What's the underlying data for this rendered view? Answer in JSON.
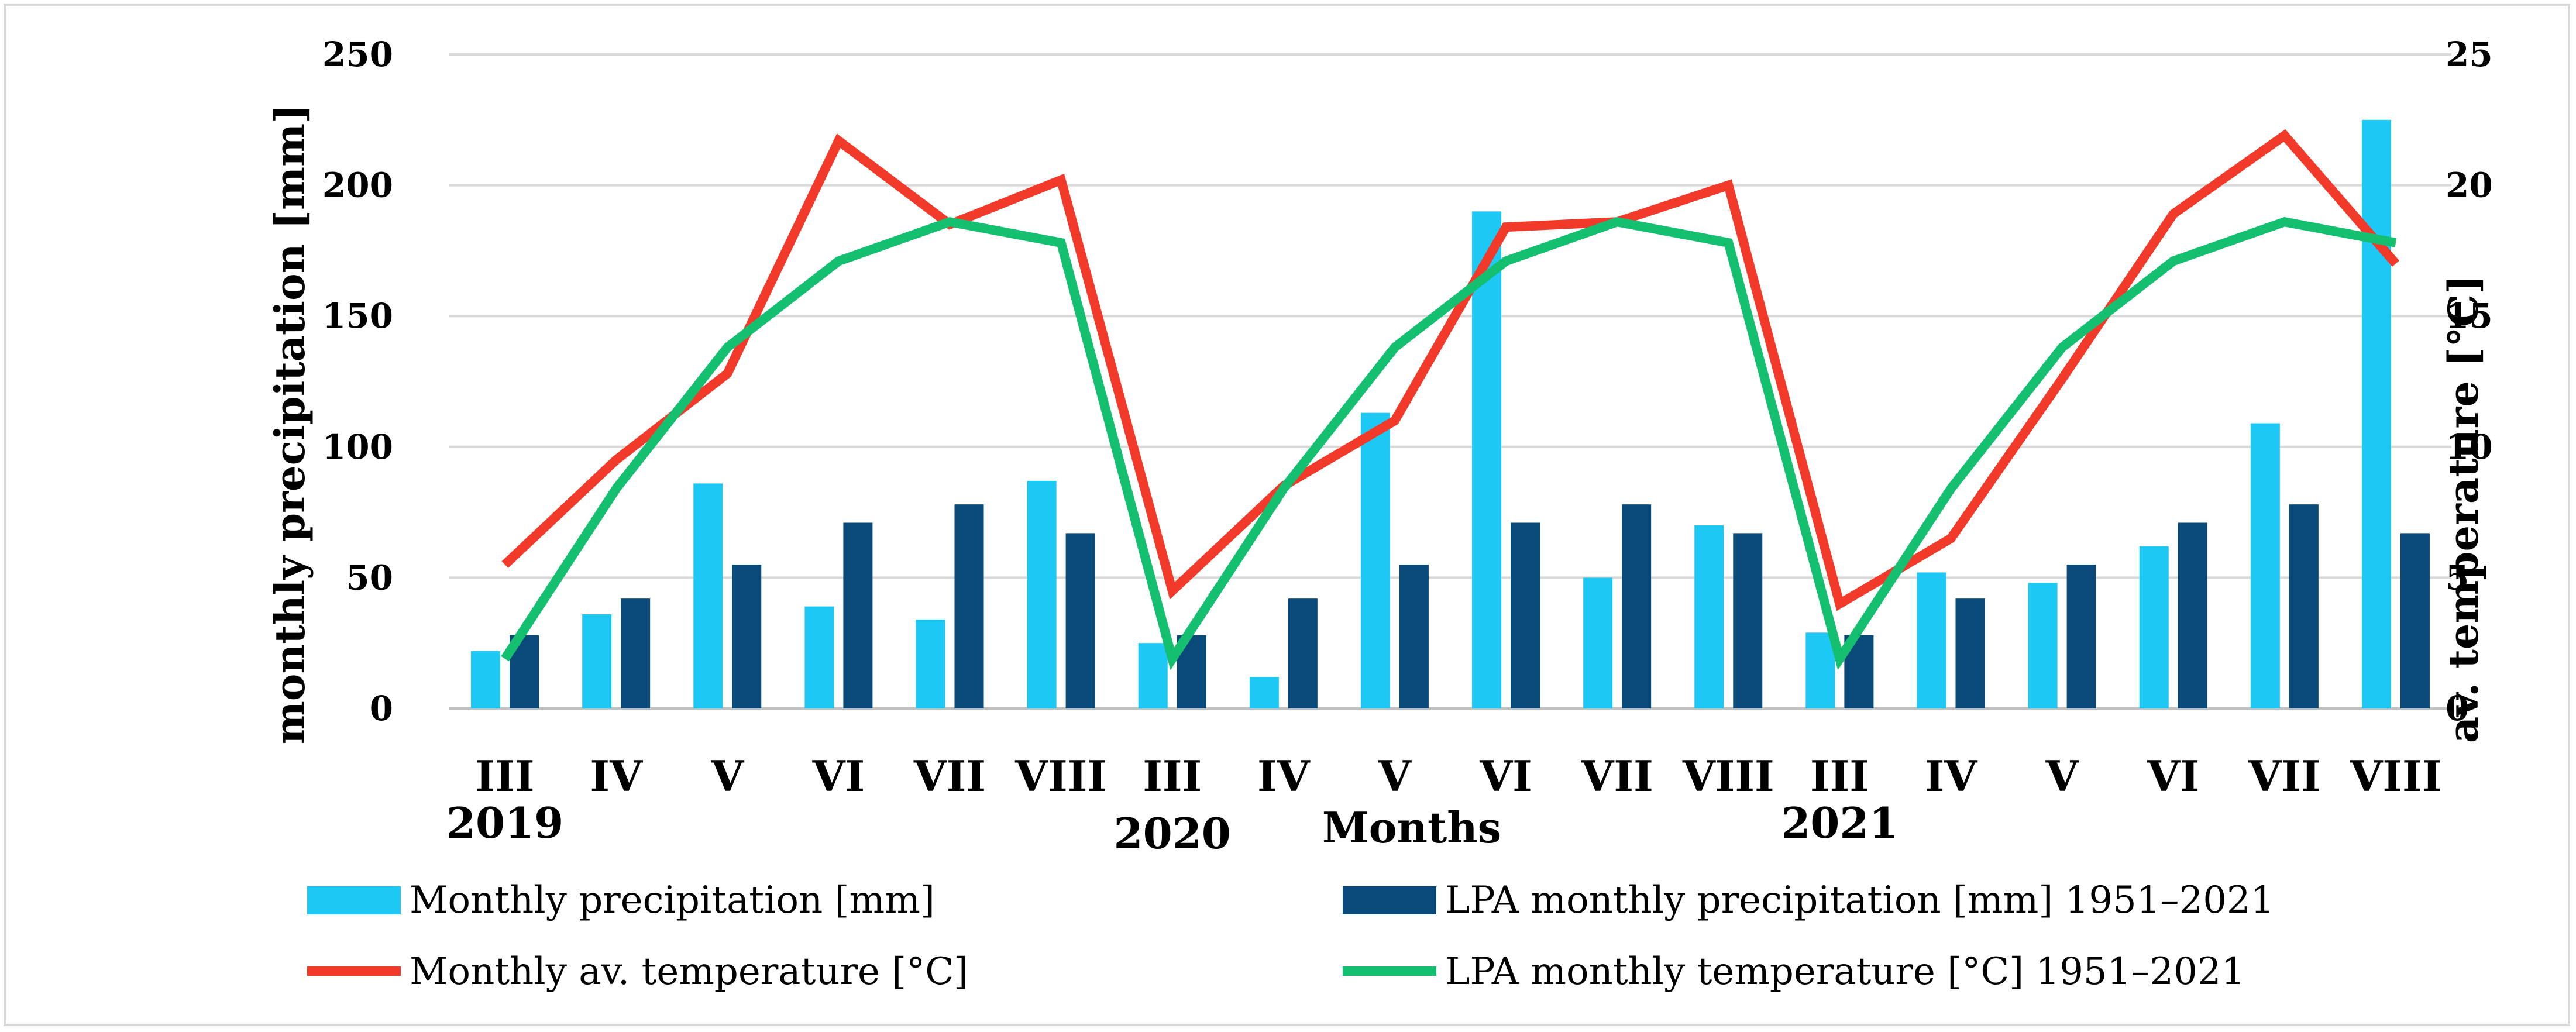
{
  "chart_data": {
    "type": "bar+line",
    "categories": [
      "III",
      "IV",
      "V",
      "VI",
      "VII",
      "VIII",
      "III",
      "IV",
      "V",
      "VI",
      "VII",
      "VIII",
      "III",
      "IV",
      "V",
      "VI",
      "VII",
      "VIII"
    ],
    "year_labels": [
      {
        "label": "2019",
        "category_index": 0
      },
      {
        "label": "2020",
        "category_index": 6
      },
      {
        "label": "2021",
        "category_index": 12
      }
    ],
    "xlabel": "Months",
    "ylabel_left": "monthly precipitation [mm]",
    "ylabel_right": "av. temperature [°C]",
    "ylim_left": [
      0,
      250
    ],
    "ylim_right": [
      0,
      25
    ],
    "yticks_left": [
      "0",
      "50",
      "100",
      "150",
      "200",
      "250"
    ],
    "yticks_right": [
      "0",
      "5",
      "10",
      "15",
      "20",
      "25"
    ],
    "grid": true,
    "legend_position": "bottom",
    "series": [
      {
        "name": "Monthly precipitation [mm]",
        "kind": "bar",
        "axis": "left",
        "color": "#1ec8f4",
        "values": [
          22,
          36,
          86,
          39,
          34,
          87,
          25,
          12,
          113,
          190,
          50,
          70,
          29,
          52,
          48,
          62,
          109,
          225
        ]
      },
      {
        "name": "LPA monthly precipitation [mm] 1951–2021",
        "kind": "bar",
        "axis": "left",
        "color": "#0a4a7a",
        "values": [
          28,
          42,
          55,
          71,
          78,
          67,
          28,
          42,
          55,
          71,
          78,
          67,
          28,
          42,
          55,
          71,
          78,
          67
        ]
      },
      {
        "name": "Monthly av. temperature [°C]",
        "kind": "line",
        "axis": "right",
        "color": "#f23a2a",
        "values": [
          5.5,
          9.5,
          12.8,
          21.7,
          18.5,
          20.2,
          4.5,
          8.5,
          11.0,
          18.4,
          18.6,
          20.0,
          4.0,
          6.5,
          12.6,
          18.9,
          21.9,
          17.0
        ]
      },
      {
        "name": "LPA monthly temperature [°C] 1951–2021",
        "kind": "line",
        "axis": "right",
        "color": "#14c070",
        "values": [
          1.9,
          8.4,
          13.8,
          17.1,
          18.6,
          17.8,
          1.9,
          8.4,
          13.8,
          17.1,
          18.6,
          17.8,
          1.9,
          8.4,
          13.8,
          17.1,
          18.6,
          17.8
        ]
      }
    ]
  }
}
